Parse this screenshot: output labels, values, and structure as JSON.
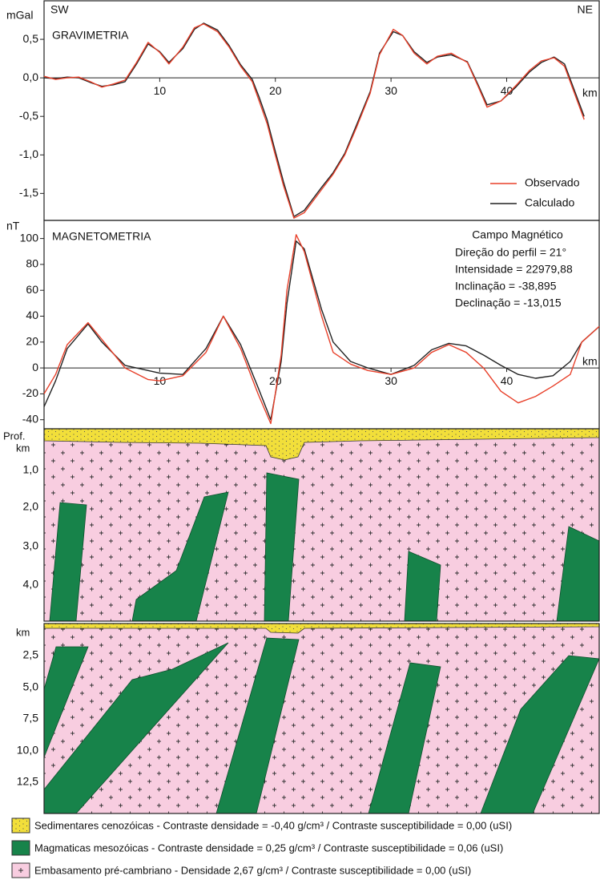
{
  "chart_data": [
    {
      "type": "line",
      "title": "GRAVIMETRIA",
      "y_unit": "mGal",
      "left_label": "SW",
      "right_label": "NE",
      "x_label": "km",
      "x": [
        0,
        1,
        2,
        3,
        4,
        5,
        6,
        7,
        8,
        9,
        10,
        10.8,
        12,
        13,
        13.8,
        15,
        16,
        17,
        18,
        18.6,
        19.3,
        19.9,
        20.7,
        21.6,
        22.5,
        24,
        25,
        26,
        27,
        28.2,
        29,
        30.2,
        31,
        32,
        33.1,
        34,
        35.2,
        36.6,
        37.5,
        38.3,
        39.5,
        40.8,
        42,
        43,
        44.1,
        45,
        46.7
      ],
      "series": [
        {
          "name": "Observado",
          "color": "#e8402a",
          "values": [
            0.02,
            -0.02,
            0.0,
            0.01,
            -0.05,
            -0.12,
            -0.08,
            -0.03,
            0.2,
            0.46,
            0.33,
            0.18,
            0.4,
            0.65,
            0.7,
            0.6,
            0.4,
            0.15,
            -0.05,
            -0.3,
            -0.6,
            -0.95,
            -1.4,
            -1.82,
            -1.75,
            -1.45,
            -1.25,
            -1.0,
            -0.65,
            -0.2,
            0.3,
            0.63,
            0.55,
            0.32,
            0.18,
            0.28,
            0.32,
            0.2,
            -0.1,
            -0.38,
            -0.3,
            -0.1,
            0.1,
            0.22,
            0.26,
            0.15,
            -0.54
          ]
        },
        {
          "name": "Calculado",
          "color": "#222222",
          "values": [
            0.0,
            -0.01,
            0.01,
            0.0,
            -0.06,
            -0.11,
            -0.09,
            -0.05,
            0.18,
            0.44,
            0.34,
            0.2,
            0.38,
            0.63,
            0.71,
            0.62,
            0.42,
            0.17,
            -0.02,
            -0.25,
            -0.55,
            -0.9,
            -1.35,
            -1.8,
            -1.72,
            -1.42,
            -1.23,
            -0.98,
            -0.62,
            -0.18,
            0.32,
            0.6,
            0.55,
            0.34,
            0.2,
            0.27,
            0.3,
            0.21,
            -0.08,
            -0.35,
            -0.3,
            -0.12,
            0.08,
            0.2,
            0.27,
            0.18,
            -0.5
          ]
        }
      ],
      "xlim": [
        0,
        48
      ],
      "xticks": [
        10,
        20,
        30,
        40
      ],
      "ylim": [
        -1.85,
        1.0
      ],
      "yticks": [
        {
          "value": 0.5,
          "label": "0,5"
        },
        {
          "value": 0,
          "label": "0,0"
        },
        {
          "value": -0.5,
          "label": "-0,5"
        },
        {
          "value": -1,
          "label": "-1,0"
        },
        {
          "value": -1.5,
          "label": "-1,5"
        }
      ],
      "legend": "lower right"
    },
    {
      "type": "line",
      "title": "MAGNETOMETRIA",
      "y_unit": "nT",
      "x_label": "km",
      "annotations": [
        "Campo Magnético",
        "Direção do perfil = 21°",
        "Intensidade = 22979,88",
        "Inclinação = -38,895",
        "Declinação = -13,015"
      ],
      "x": [
        0,
        1,
        2,
        3.8,
        5,
        7,
        9,
        10,
        12,
        14,
        15.5,
        17,
        18.5,
        19.6,
        20.5,
        21,
        21.8,
        22.5,
        24,
        25,
        26.5,
        28,
        30,
        32,
        33.5,
        35,
        36.5,
        38,
        39.5,
        41,
        42.5,
        44,
        45.5,
        46.5,
        48
      ],
      "series": [
        {
          "name": "Observado",
          "color": "#e8402a",
          "values": [
            -20,
            -5,
            18,
            35,
            22,
            0,
            -9,
            -10,
            -6,
            12,
            40,
            15,
            -20,
            -43,
            10,
            60,
            103,
            90,
            40,
            12,
            3,
            -2,
            -5,
            0,
            12,
            18,
            12,
            0,
            -18,
            -27,
            -22,
            -14,
            -5,
            20,
            32
          ]
        },
        {
          "name": "Calculado",
          "color": "#222222",
          "values": [
            -30,
            -10,
            15,
            34,
            20,
            2,
            -2,
            -4,
            -5,
            15,
            40,
            18,
            -15,
            -40,
            5,
            50,
            98,
            92,
            45,
            20,
            5,
            0,
            -5,
            2,
            14,
            19,
            17,
            10,
            2,
            -5,
            -8,
            -6,
            5,
            20,
            32
          ]
        }
      ],
      "xlim": [
        0,
        48
      ],
      "xticks": [
        10,
        20,
        30,
        40
      ],
      "ylim": [
        -47,
        114
      ],
      "yticks": [
        100,
        80,
        60,
        40,
        20,
        0,
        -20,
        -40
      ]
    }
  ],
  "sections": [
    {
      "depth_unit": [
        "Prof.",
        "km"
      ],
      "depth_ticks": [
        "1,0",
        "2,0",
        "3,0",
        "4,0"
      ]
    },
    {
      "depth_unit": [
        "km"
      ],
      "depth_ticks": [
        "2,5",
        "5,0",
        "7,5",
        "10,0",
        "12,5"
      ]
    }
  ],
  "legend": [
    "Sedimentares cenozóicas - Contraste densidade = -0,40 g/cm³ / Contraste susceptibilidade = 0,00 (uSI)",
    "Magmaticas mesozóicas - Contraste densidade = 0,25 g/cm³ / Contraste susceptibilidade = 0,06 (uSI)",
    "Embasamento pré-cambriano  - Densidade 2,67 g/cm³ / Contraste susceptibilidade = 0,00 (uSI)"
  ]
}
